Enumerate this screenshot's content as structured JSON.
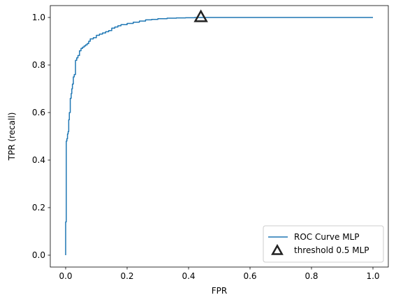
{
  "chart_data": {
    "type": "line",
    "xlabel": "FPR",
    "ylabel": "TPR (recall)",
    "xlim": [
      -0.05,
      1.05
    ],
    "ylim": [
      -0.05,
      1.05
    ],
    "xticks": [
      "0.0",
      "0.2",
      "0.4",
      "0.6",
      "0.8",
      "1.0"
    ],
    "yticks": [
      "0.0",
      "0.2",
      "0.4",
      "0.6",
      "0.8",
      "1.0"
    ],
    "legend_position": "lower-right",
    "series": [
      {
        "name": "ROC Curve MLP",
        "color": "#1f77b4",
        "x": [
          0.0,
          0.0,
          0.002,
          0.002,
          0.004,
          0.004,
          0.006,
          0.006,
          0.008,
          0.008,
          0.01,
          0.01,
          0.012,
          0.012,
          0.015,
          0.015,
          0.018,
          0.018,
          0.02,
          0.02,
          0.022,
          0.022,
          0.025,
          0.025,
          0.028,
          0.028,
          0.032,
          0.032,
          0.036,
          0.036,
          0.04,
          0.04,
          0.045,
          0.045,
          0.05,
          0.05,
          0.055,
          0.055,
          0.06,
          0.06,
          0.065,
          0.065,
          0.07,
          0.07,
          0.075,
          0.075,
          0.08,
          0.08,
          0.09,
          0.09,
          0.1,
          0.1,
          0.11,
          0.11,
          0.12,
          0.12,
          0.13,
          0.13,
          0.14,
          0.14,
          0.15,
          0.15,
          0.16,
          0.16,
          0.17,
          0.17,
          0.18,
          0.18,
          0.2,
          0.2,
          0.22,
          0.22,
          0.24,
          0.24,
          0.26,
          0.26,
          0.28,
          0.28,
          0.3,
          0.3,
          0.33,
          0.33,
          0.36,
          0.36,
          0.39,
          0.39,
          0.42,
          0.42,
          0.45,
          0.45,
          1.0
        ],
        "y": [
          0.0,
          0.14,
          0.14,
          0.48,
          0.48,
          0.49,
          0.49,
          0.51,
          0.51,
          0.52,
          0.52,
          0.57,
          0.57,
          0.6,
          0.6,
          0.66,
          0.66,
          0.68,
          0.68,
          0.7,
          0.7,
          0.72,
          0.72,
          0.75,
          0.75,
          0.76,
          0.76,
          0.82,
          0.82,
          0.83,
          0.83,
          0.84,
          0.84,
          0.86,
          0.86,
          0.87,
          0.87,
          0.875,
          0.875,
          0.88,
          0.88,
          0.885,
          0.885,
          0.89,
          0.89,
          0.9,
          0.9,
          0.91,
          0.91,
          0.915,
          0.915,
          0.925,
          0.925,
          0.93,
          0.93,
          0.935,
          0.935,
          0.94,
          0.94,
          0.945,
          0.945,
          0.955,
          0.955,
          0.96,
          0.96,
          0.965,
          0.965,
          0.97,
          0.97,
          0.975,
          0.975,
          0.98,
          0.98,
          0.985,
          0.985,
          0.99,
          0.99,
          0.992,
          0.992,
          0.995,
          0.995,
          0.997,
          0.997,
          0.998,
          0.998,
          0.999,
          0.999,
          1.0,
          1.0,
          1.0,
          1.0
        ]
      },
      {
        "name": "threshold 0.5 MLP",
        "color": "#222222",
        "marker": "triangle",
        "x": [
          0.44
        ],
        "y": [
          1.0
        ]
      }
    ]
  }
}
